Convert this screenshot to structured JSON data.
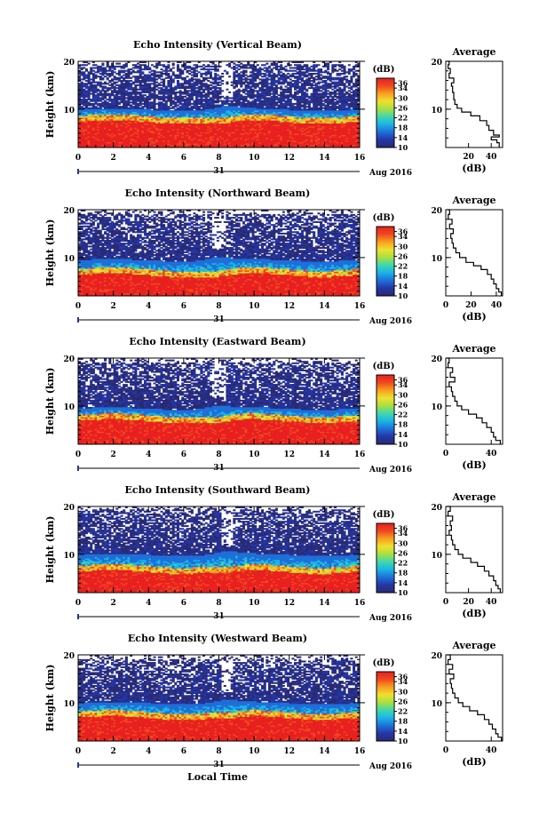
{
  "figure": {
    "xlabel_common": "Local Time",
    "date_day": "31",
    "date_month_year": "Aug 2016",
    "colorbar_unit": "(dB)",
    "colorbar_ticks": [
      "36",
      "34",
      "30",
      "26",
      "22",
      "18",
      "14",
      "10"
    ],
    "colorbar_range": [
      10,
      38
    ],
    "colormap_stops": [
      "#2a2a72",
      "#2436a6",
      "#1f6fd8",
      "#1ab4e8",
      "#3fd6b0",
      "#a8e040",
      "#f0e030",
      "#f8a020",
      "#f04820",
      "#e82020"
    ]
  },
  "chart_data": [
    {
      "type": "heatmap",
      "title": "Echo Intensity (Vertical Beam)",
      "ylabel": "Height (km)",
      "xlim": [
        0,
        16
      ],
      "ylim": [
        2,
        20
      ],
      "xticks": [
        "0",
        "2",
        "4",
        "6",
        "8",
        "10",
        "12",
        "14",
        "16"
      ],
      "yticks": [
        "10",
        "20"
      ],
      "side_panel": {
        "title": "Average",
        "xlabel": "(dB)",
        "xticks": [
          "20",
          "40"
        ],
        "xlim": [
          0,
          50
        ],
        "ylim": [
          2,
          20
        ],
        "yticks": [
          "10",
          "20"
        ],
        "profile": [
          [
            47,
            2.0
          ],
          [
            45,
            3.0
          ],
          [
            40,
            3.6
          ],
          [
            47,
            4.2
          ],
          [
            42,
            4.6
          ],
          [
            38,
            5.6
          ],
          [
            36,
            6.6
          ],
          [
            30,
            7.6
          ],
          [
            22,
            8.6
          ],
          [
            14,
            9.4
          ],
          [
            10,
            10.2
          ],
          [
            8,
            11.0
          ],
          [
            7,
            12.0
          ],
          [
            6,
            13.5
          ],
          [
            5,
            14.8
          ],
          [
            7,
            15.5
          ],
          [
            3,
            16.5
          ],
          [
            4,
            17.5
          ],
          [
            2,
            18.5
          ],
          [
            3,
            19.3
          ],
          [
            1,
            20.0
          ]
        ]
      },
      "echo_layers": {
        "strong_top_km": 8.0,
        "transition_top_km": 10.0,
        "sparse_top_km": 19.5,
        "dip_at_hour": 8.5
      }
    },
    {
      "type": "heatmap",
      "title": "Echo Intensity (Northward Beam)",
      "ylabel": "Height (km)",
      "xlim": [
        0,
        16
      ],
      "ylim": [
        2,
        20
      ],
      "xticks": [
        "0",
        "2",
        "4",
        "6",
        "8",
        "10",
        "12",
        "14",
        "16"
      ],
      "yticks": [
        "10",
        "20"
      ],
      "side_panel": {
        "title": "Average",
        "xlabel": "(dB)",
        "xticks": [
          "0",
          "20",
          "40"
        ],
        "xlim": [
          0,
          45
        ],
        "ylim": [
          2,
          20
        ],
        "yticks": [
          "10",
          "20"
        ],
        "profile": [
          [
            44,
            2.0
          ],
          [
            42,
            2.8
          ],
          [
            40,
            3.5
          ],
          [
            38,
            4.5
          ],
          [
            36,
            5.5
          ],
          [
            33,
            6.5
          ],
          [
            28,
            7.5
          ],
          [
            22,
            8.3
          ],
          [
            16,
            9.0
          ],
          [
            11,
            10.0
          ],
          [
            8,
            11.0
          ],
          [
            6,
            12.0
          ],
          [
            5,
            13.0
          ],
          [
            4,
            14.0
          ],
          [
            6,
            15.0
          ],
          [
            3,
            16.0
          ],
          [
            5,
            17.0
          ],
          [
            2,
            18.0
          ],
          [
            3,
            19.0
          ],
          [
            1,
            20.0
          ]
        ]
      },
      "echo_layers": {
        "strong_top_km": 7.0,
        "transition_top_km": 9.5,
        "sparse_top_km": 19.0,
        "dip_at_hour": 8.0
      }
    },
    {
      "type": "heatmap",
      "title": "Echo Intensity (Eastward Beam)",
      "ylabel": "Height (km)",
      "xlim": [
        0,
        16
      ],
      "ylim": [
        2,
        20
      ],
      "xticks": [
        "0",
        "2",
        "4",
        "6",
        "8",
        "10",
        "12",
        "14",
        "16"
      ],
      "yticks": [
        "10",
        "20"
      ],
      "side_panel": {
        "title": "Average",
        "xlabel": "(dB)",
        "xticks": [
          "0",
          "40"
        ],
        "xlim": [
          0,
          50
        ],
        "ylim": [
          2,
          20
        ],
        "yticks": [
          "10",
          "20"
        ],
        "profile": [
          [
            48,
            2.0
          ],
          [
            44,
            2.8
          ],
          [
            42,
            3.5
          ],
          [
            40,
            4.5
          ],
          [
            36,
            5.5
          ],
          [
            32,
            6.5
          ],
          [
            27,
            7.5
          ],
          [
            20,
            8.3
          ],
          [
            14,
            9.2
          ],
          [
            10,
            10.0
          ],
          [
            8,
            11.0
          ],
          [
            6,
            12.0
          ],
          [
            5,
            13.0
          ],
          [
            3,
            14.0
          ],
          [
            8,
            15.0
          ],
          [
            4,
            16.0
          ],
          [
            6,
            17.0
          ],
          [
            2,
            18.0
          ],
          [
            3,
            19.0
          ],
          [
            1,
            20.0
          ]
        ]
      },
      "echo_layers": {
        "strong_top_km": 7.5,
        "transition_top_km": 9.5,
        "sparse_top_km": 19.0,
        "dip_at_hour": 8.0
      }
    },
    {
      "type": "heatmap",
      "title": "Echo Intensity (Southward Beam)",
      "ylabel": "Height (km)",
      "xlim": [
        0,
        16
      ],
      "ylim": [
        2,
        20
      ],
      "xticks": [
        "0",
        "2",
        "4",
        "6",
        "8",
        "10",
        "12",
        "14",
        "16"
      ],
      "yticks": [
        "10",
        "20"
      ],
      "side_panel": {
        "title": "Average",
        "xlabel": "(dB)",
        "xticks": [
          "0",
          "20",
          "40"
        ],
        "xlim": [
          0,
          50
        ],
        "ylim": [
          2,
          20
        ],
        "yticks": [
          "10",
          "20"
        ],
        "profile": [
          [
            48,
            2.0
          ],
          [
            46,
            2.8
          ],
          [
            44,
            3.5
          ],
          [
            42,
            4.5
          ],
          [
            38,
            5.5
          ],
          [
            34,
            6.5
          ],
          [
            28,
            7.5
          ],
          [
            22,
            8.3
          ],
          [
            15,
            9.2
          ],
          [
            11,
            10.0
          ],
          [
            8,
            11.0
          ],
          [
            6,
            12.0
          ],
          [
            5,
            13.0
          ],
          [
            3,
            14.0
          ],
          [
            5,
            15.0
          ],
          [
            4,
            16.0
          ],
          [
            6,
            17.0
          ],
          [
            2,
            18.0
          ],
          [
            4,
            19.0
          ],
          [
            1,
            20.0
          ]
        ]
      },
      "echo_layers": {
        "strong_top_km": 7.0,
        "transition_top_km": 10.0,
        "sparse_top_km": 19.5,
        "dip_at_hour": 8.5
      }
    },
    {
      "type": "heatmap",
      "title": "Echo Intensity (Westward Beam)",
      "ylabel": "Height (km)",
      "xlim": [
        0,
        16
      ],
      "ylim": [
        2,
        20
      ],
      "xticks": [
        "0",
        "2",
        "4",
        "6",
        "8",
        "10",
        "12",
        "14",
        "16"
      ],
      "yticks": [
        "10",
        "20"
      ],
      "side_panel": {
        "title": "Average",
        "xlabel": "(dB)",
        "xticks": [
          "0",
          "40"
        ],
        "xlim": [
          0,
          50
        ],
        "ylim": [
          2,
          20
        ],
        "yticks": [
          "10",
          "20"
        ],
        "profile": [
          [
            49,
            2.0
          ],
          [
            46,
            2.8
          ],
          [
            44,
            3.5
          ],
          [
            41,
            4.5
          ],
          [
            38,
            5.5
          ],
          [
            34,
            6.5
          ],
          [
            28,
            7.5
          ],
          [
            21,
            8.3
          ],
          [
            15,
            9.2
          ],
          [
            11,
            10.0
          ],
          [
            8,
            11.0
          ],
          [
            6,
            12.0
          ],
          [
            5,
            13.0
          ],
          [
            4,
            14.0
          ],
          [
            7,
            15.0
          ],
          [
            3,
            16.0
          ],
          [
            6,
            17.0
          ],
          [
            2,
            18.0
          ],
          [
            4,
            19.0
          ],
          [
            1,
            20.0
          ]
        ]
      },
      "echo_layers": {
        "strong_top_km": 7.5,
        "transition_top_km": 10.0,
        "sparse_top_km": 19.0,
        "dip_at_hour": 8.5
      }
    }
  ]
}
